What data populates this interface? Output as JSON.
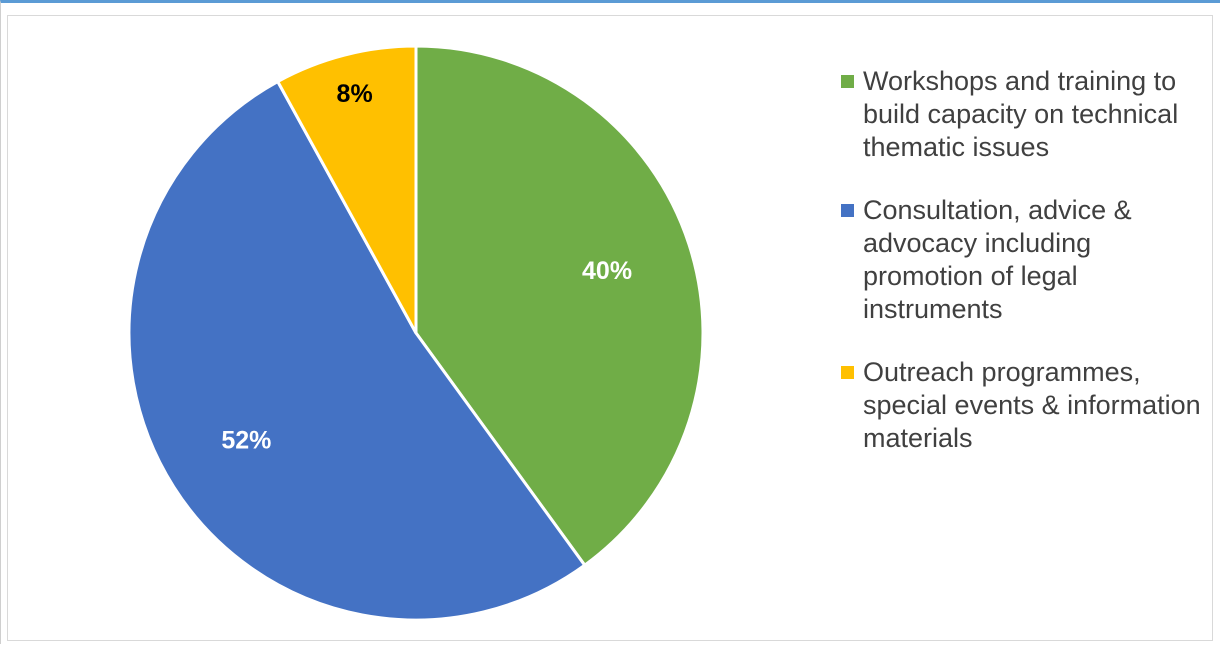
{
  "chart_data": {
    "type": "pie",
    "title": "",
    "start_angle_deg": 0,
    "direction": "clockwise",
    "legend_position": "right",
    "slices": [
      {
        "label": "Workshops and training to build capacity on technical thematic issues",
        "value": 40,
        "value_label": "40%",
        "color": "#70ad47",
        "label_color": "#ffffff"
      },
      {
        "label": "Consultation, advice & advocacy including promotion of legal instruments",
        "value": 52,
        "value_label": "52%",
        "color": "#4472c4",
        "label_color": "#ffffff"
      },
      {
        "label": "Outreach programmes, special events & information materials",
        "value": 8,
        "value_label": "8%",
        "color": "#ffc000",
        "label_color": "#000000"
      }
    ]
  }
}
